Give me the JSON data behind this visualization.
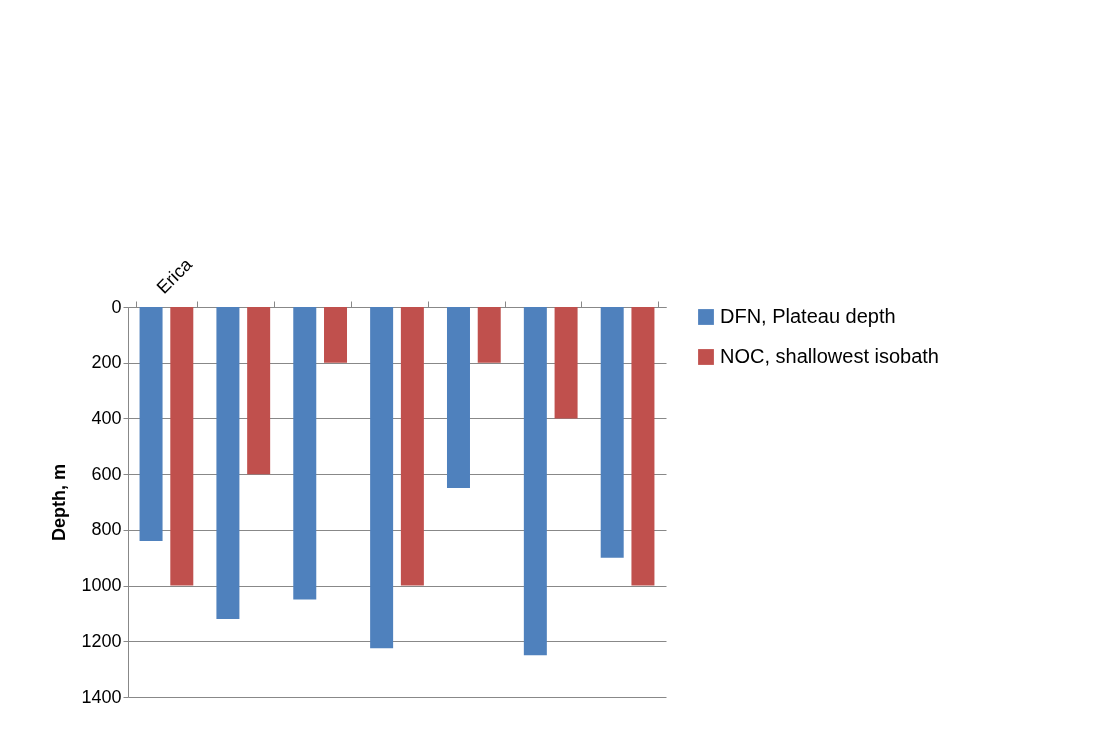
{
  "chart_data": {
    "type": "bar",
    "ylabel": "Depth, m",
    "categories": [
      "Erica",
      null,
      null,
      null,
      null,
      null,
      null
    ],
    "series": [
      {
        "name": "DFN, Plateau depth",
        "color": "#4f81bd",
        "values": [
          840,
          1120,
          1050,
          1225,
          650,
          1250,
          900
        ]
      },
      {
        "name": "NOC, shallowest isobath",
        "color": "#c0504d",
        "values": [
          1000,
          600,
          200,
          1000,
          200,
          400,
          1000
        ]
      }
    ],
    "ylim": [
      1400,
      0
    ],
    "yticks": [
      0,
      200,
      400,
      600,
      800,
      1000,
      1200,
      1400
    ],
    "grid": "y",
    "legend": "right"
  }
}
